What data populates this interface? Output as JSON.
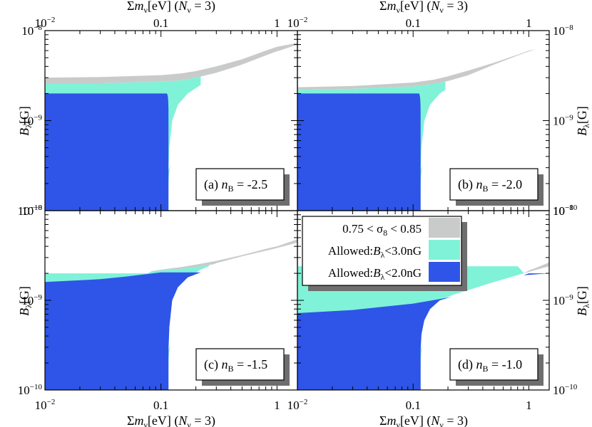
{
  "colors": {
    "sigma8_band": "#c8cbc9",
    "allowed_3nG": "#7ff2d8",
    "allowed_2nG": "#2e55e8",
    "shadow": "#6e6e6e",
    "frame": "#000000"
  },
  "axes": {
    "x_label_prefix": "Σm",
    "x_label_sub": "ν",
    "x_label_unit": "[eV] (",
    "x_label_N": "N",
    "x_label_Nsub": "ν",
    "x_label_suffix": " = 3)",
    "y_label_B": "B",
    "y_label_sub": "λ",
    "y_label_unit": "[G]",
    "x_ticks": [
      {
        "value": 0.01,
        "base": "10",
        "exp": "−2"
      },
      {
        "value": 0.1,
        "text": "0.1"
      },
      {
        "value": 1,
        "text": "1"
      }
    ],
    "y_ticks": [
      {
        "value": 1e-10,
        "base": "10",
        "exp": "−10"
      },
      {
        "value": 1e-09,
        "base": "10",
        "exp": "−9"
      },
      {
        "value": 1e-08,
        "base": "10",
        "exp": "−8"
      }
    ]
  },
  "legend": [
    {
      "label": "0.75 < σ",
      "sub": "8",
      "tail": " < 0.85",
      "color_key": "sigma8_band"
    },
    {
      "label": "Allowed:",
      "italic": "B",
      "sub": "λ",
      "tail": "<3.0nG",
      "color_key": "allowed_3nG"
    },
    {
      "label": "Allowed:",
      "italic": "B",
      "sub": "λ",
      "tail": "<2.0nG",
      "color_key": "allowed_2nG"
    }
  ],
  "chart_data": [
    {
      "type": "area",
      "panel_label": "(a)",
      "nB_label": "n",
      "nB_sub": "B",
      "nB_value": " = -2.5",
      "x_scale": "log",
      "y_scale": "log",
      "xlim": [
        0.01,
        1.5
      ],
      "ylim": [
        1e-10,
        1e-08
      ],
      "sigma8_band": {
        "x": [
          0.01,
          0.03,
          0.1,
          0.15,
          0.2,
          0.3,
          0.5,
          0.8,
          1.0,
          1.5
        ],
        "y_low": [
          2.6e-09,
          2.6e-09,
          2.7e-09,
          2.8e-09,
          3e-09,
          3.4e-09,
          4.2e-09,
          5.3e-09,
          5.9e-09,
          6.7e-09
        ],
        "y_high": [
          3e-09,
          3.05e-09,
          3.2e-09,
          3.35e-09,
          3.55e-09,
          4e-09,
          4.8e-09,
          6e-09,
          6.6e-09,
          7.3e-09
        ]
      },
      "allowed_3nG": {
        "x_max": 0.22,
        "y_max": 2.6e-09
      },
      "allowed_2nG": {
        "x_max": 0.116,
        "y_max": 2e-09
      }
    },
    {
      "type": "area",
      "panel_label": "(b)",
      "nB_label": "n",
      "nB_sub": "B",
      "nB_value": " = -2.0",
      "x_scale": "log",
      "y_scale": "log",
      "xlim": [
        0.01,
        1.5
      ],
      "ylim": [
        1e-10,
        1e-08
      ],
      "sigma8_band": {
        "x": [
          0.01,
          0.03,
          0.1,
          0.15,
          0.2,
          0.3,
          0.5,
          0.8,
          1.0,
          1.5
        ],
        "y_low": [
          2.2e-09,
          2.25e-09,
          2.4e-09,
          2.55e-09,
          2.75e-09,
          3.2e-09,
          3.9e-09,
          4.9e-09,
          5.4e-09,
          6.1e-09
        ],
        "y_high": [
          2.35e-09,
          2.42e-09,
          2.65e-09,
          2.85e-09,
          3.1e-09,
          3.6e-09,
          4.4e-09,
          5.4e-09,
          6e-09,
          6.7e-09
        ]
      },
      "allowed_3nG": {
        "x_max": 0.19,
        "y_max": 2.25e-09
      },
      "allowed_2nG": {
        "x_max": 0.116,
        "y_max": 2e-09
      }
    },
    {
      "type": "area",
      "panel_label": "(c)",
      "nB_label": "n",
      "nB_sub": "B",
      "nB_value": " = -1.5",
      "x_scale": "log",
      "y_scale": "log",
      "xlim": [
        0.01,
        1.5
      ],
      "ylim": [
        1e-10,
        1e-08
      ],
      "sigma8_band": {
        "x": [
          0.08,
          0.1,
          0.15,
          0.2,
          0.3,
          0.5,
          0.8,
          1.0,
          1.5
        ],
        "y_low": [
          2.1e-09,
          2.15e-09,
          2.25e-09,
          2.35e-09,
          2.55e-09,
          2.9e-09,
          3.35e-09,
          3.6e-09,
          4.3e-09
        ],
        "y_high": [
          2.1e-09,
          2.2e-09,
          2.35e-09,
          2.5e-09,
          2.75e-09,
          3.2e-09,
          3.75e-09,
          4e-09,
          4.8e-09
        ]
      },
      "allowed_3nG": {
        "x_max": 0.26,
        "y_max": 2e-09
      },
      "allowed_2nG": {
        "x_max": 0.116,
        "y_top_curve": {
          "x": [
            0.01,
            0.03,
            0.05,
            0.08,
            0.1,
            0.2,
            0.26
          ],
          "y": [
            1.6e-09,
            1.72e-09,
            1.84e-09,
            1.98e-09,
            2.05e-09,
            2.05e-09,
            2.05e-09
          ]
        }
      }
    },
    {
      "type": "area",
      "panel_label": "(d)",
      "nB_label": "n",
      "nB_sub": "B",
      "nB_value": " = -1.0",
      "x_scale": "log",
      "y_scale": "log",
      "xlim": [
        0.01,
        1.5
      ],
      "ylim": [
        1e-10,
        1e-08
      ],
      "sigma8_band": {
        "x": [
          0.9,
          1.0,
          1.2,
          1.5
        ],
        "y_low": [
          2e-09,
          2.05e-09,
          2.2e-09,
          2.4e-09
        ],
        "y_high": [
          2e-09,
          2.15e-09,
          2.35e-09,
          2.65e-09
        ]
      },
      "allowed_3nG": {
        "x_max": 1.5,
        "y_max": 2.4e-09
      },
      "allowed_2nG": {
        "x_max": 0.116,
        "y_top_curve": {
          "x": [
            0.01,
            0.03,
            0.1,
            0.2,
            0.3,
            0.5,
            0.8,
            1.0,
            1.5
          ],
          "y": [
            7.2e-10,
            7.8e-10,
            9.2e-10,
            1.07e-09,
            1.2e-09,
            1.45e-09,
            1.8e-09,
            2e-09,
            2e-09
          ]
        }
      }
    }
  ]
}
